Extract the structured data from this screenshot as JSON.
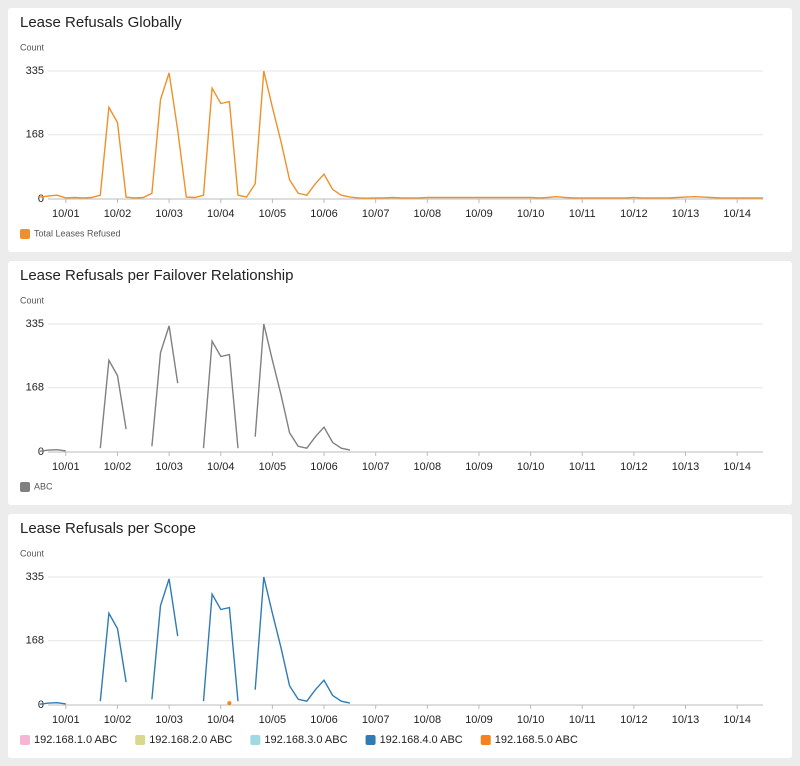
{
  "chart_data": [
    {
      "type": "line",
      "title": "Lease Refusals Globally",
      "y_label": "Count",
      "legend": "bottom-left",
      "grid": true,
      "ylim": [
        0,
        335
      ],
      "yticks": [
        0,
        168,
        335
      ],
      "categories": [
        null,
        null,
        null,
        "10/01",
        null,
        null,
        null,
        null,
        null,
        "10/02",
        null,
        null,
        null,
        null,
        null,
        "10/03",
        null,
        null,
        null,
        null,
        null,
        "10/04",
        null,
        null,
        null,
        null,
        null,
        "10/05",
        null,
        null,
        null,
        null,
        null,
        "10/06",
        null,
        null,
        null,
        null,
        null,
        "10/07",
        null,
        null,
        null,
        null,
        null,
        "10/08",
        null,
        null,
        null,
        null,
        null,
        "10/09",
        null,
        null,
        null,
        null,
        null,
        "10/10",
        null,
        null,
        null,
        null,
        null,
        "10/11",
        null,
        null,
        null,
        null,
        null,
        "10/12",
        null,
        null,
        null,
        null,
        null,
        "10/13",
        null,
        null,
        null,
        null,
        null,
        "10/14",
        null,
        null,
        null
      ],
      "series": [
        {
          "name": "Total Leases Refused",
          "color": "#f0902a",
          "values": [
            5,
            8,
            10,
            3,
            4,
            3,
            4,
            10,
            240,
            200,
            5,
            3,
            4,
            15,
            260,
            330,
            180,
            5,
            4,
            10,
            290,
            250,
            255,
            10,
            5,
            40,
            335,
            240,
            150,
            50,
            15,
            10,
            40,
            65,
            25,
            10,
            5,
            3,
            2,
            3,
            3,
            4,
            3,
            3,
            3,
            4,
            4,
            4,
            4,
            4,
            4,
            4,
            4,
            4,
            4,
            4,
            4,
            4,
            3,
            4,
            6,
            4,
            3,
            3,
            3,
            3,
            3,
            3,
            3,
            4,
            3,
            3,
            3,
            3,
            4,
            5,
            6,
            5,
            4,
            3,
            3,
            3,
            3,
            3,
            3
          ]
        }
      ]
    },
    {
      "type": "line",
      "title": "Lease Refusals per Failover Relationship",
      "y_label": "Count",
      "legend": "bottom-left",
      "grid": true,
      "ylim": [
        0,
        335
      ],
      "yticks": [
        0,
        168,
        335
      ],
      "categories": [
        null,
        null,
        null,
        "10/01",
        null,
        null,
        null,
        null,
        null,
        "10/02",
        null,
        null,
        null,
        null,
        null,
        "10/03",
        null,
        null,
        null,
        null,
        null,
        "10/04",
        null,
        null,
        null,
        null,
        null,
        "10/05",
        null,
        null,
        null,
        null,
        null,
        "10/06",
        null,
        null,
        null,
        null,
        null,
        "10/07",
        null,
        null,
        null,
        null,
        null,
        "10/08",
        null,
        null,
        null,
        null,
        null,
        "10/09",
        null,
        null,
        null,
        null,
        null,
        "10/10",
        null,
        null,
        null,
        null,
        null,
        "10/11",
        null,
        null,
        null,
        null,
        null,
        "10/12",
        null,
        null,
        null,
        null,
        null,
        "10/13",
        null,
        null,
        null,
        null,
        null,
        "10/14",
        null,
        null,
        null
      ],
      "series": [
        {
          "name": "ABC",
          "color": "#808080",
          "values": [
            2,
            5,
            6,
            3,
            null,
            null,
            null,
            10,
            240,
            200,
            60,
            null,
            null,
            15,
            260,
            330,
            180,
            null,
            null,
            10,
            290,
            250,
            255,
            10,
            null,
            40,
            335,
            240,
            150,
            50,
            15,
            10,
            40,
            65,
            25,
            10,
            5,
            null,
            null,
            null,
            null,
            null,
            null,
            null,
            null,
            null,
            null,
            null,
            null,
            null,
            null,
            null,
            null,
            null,
            null,
            null,
            null,
            null,
            null,
            null,
            null,
            null,
            null,
            null,
            null,
            null,
            null,
            null,
            null,
            null,
            null,
            null,
            null,
            null,
            null,
            null,
            null,
            null,
            null,
            null,
            null,
            null,
            null,
            null,
            null
          ]
        }
      ]
    },
    {
      "type": "line",
      "title": "Lease Refusals per Scope",
      "y_label": "Count",
      "legend": "bottom-left",
      "grid": true,
      "ylim": [
        0,
        335
      ],
      "yticks": [
        0,
        168,
        335
      ],
      "categories": [
        null,
        null,
        null,
        "10/01",
        null,
        null,
        null,
        null,
        null,
        "10/02",
        null,
        null,
        null,
        null,
        null,
        "10/03",
        null,
        null,
        null,
        null,
        null,
        "10/04",
        null,
        null,
        null,
        null,
        null,
        "10/05",
        null,
        null,
        null,
        null,
        null,
        "10/06",
        null,
        null,
        null,
        null,
        null,
        "10/07",
        null,
        null,
        null,
        null,
        null,
        "10/08",
        null,
        null,
        null,
        null,
        null,
        "10/09",
        null,
        null,
        null,
        null,
        null,
        "10/10",
        null,
        null,
        null,
        null,
        null,
        "10/11",
        null,
        null,
        null,
        null,
        null,
        "10/12",
        null,
        null,
        null,
        null,
        null,
        "10/13",
        null,
        null,
        null,
        null,
        null,
        "10/14",
        null,
        null,
        null
      ],
      "series": [
        {
          "name": "192.168.1.0 ABC",
          "color": "#f4b6d2",
          "values": [
            null,
            null,
            null,
            null,
            null,
            null,
            null,
            null,
            null,
            null,
            null,
            null,
            null,
            null,
            null,
            null,
            null,
            null,
            null,
            null,
            null,
            null,
            null,
            null,
            null,
            null,
            null,
            null,
            null,
            null,
            null,
            null,
            null,
            null,
            null,
            null,
            null,
            null,
            null,
            null,
            null,
            null,
            null,
            null,
            null,
            null,
            null,
            null,
            null,
            null,
            null,
            null,
            null,
            null,
            null,
            null,
            null,
            null,
            null,
            null,
            null,
            null,
            null,
            null,
            null,
            null,
            null,
            null,
            null,
            null,
            null,
            null,
            null,
            null,
            null,
            null,
            null,
            null,
            null,
            null,
            null,
            null,
            null,
            null,
            null
          ]
        },
        {
          "name": "192.168.2.0 ABC",
          "color": "#d8d88e",
          "values": [
            null,
            null,
            null,
            null,
            null,
            null,
            null,
            null,
            null,
            null,
            null,
            null,
            null,
            null,
            null,
            null,
            null,
            null,
            null,
            null,
            null,
            null,
            null,
            null,
            null,
            null,
            null,
            null,
            null,
            null,
            null,
            null,
            null,
            null,
            null,
            null,
            null,
            null,
            null,
            null,
            null,
            null,
            null,
            null,
            null,
            null,
            null,
            null,
            null,
            null,
            null,
            null,
            null,
            null,
            null,
            null,
            null,
            null,
            null,
            null,
            null,
            null,
            null,
            null,
            null,
            null,
            null,
            null,
            null,
            null,
            null,
            null,
            null,
            null,
            null,
            null,
            null,
            null,
            null,
            null,
            null,
            null,
            null,
            null,
            null
          ]
        },
        {
          "name": "192.168.3.0 ABC",
          "color": "#9fd9e1",
          "values": [
            null,
            null,
            null,
            null,
            null,
            null,
            null,
            null,
            null,
            null,
            null,
            null,
            null,
            null,
            null,
            null,
            null,
            null,
            null,
            null,
            null,
            null,
            null,
            null,
            null,
            null,
            null,
            null,
            null,
            null,
            null,
            null,
            null,
            null,
            null,
            null,
            null,
            null,
            null,
            null,
            null,
            null,
            null,
            null,
            null,
            null,
            null,
            null,
            null,
            null,
            null,
            null,
            null,
            null,
            null,
            null,
            null,
            null,
            null,
            null,
            null,
            null,
            null,
            null,
            null,
            null,
            null,
            null,
            null,
            null,
            null,
            null,
            null,
            null,
            null,
            null,
            null,
            null,
            null,
            null,
            null,
            null,
            null,
            null,
            null
          ]
        },
        {
          "name": "192.168.4.0 ABC",
          "color": "#2f7bb5",
          "values": [
            2,
            5,
            6,
            3,
            null,
            null,
            null,
            10,
            240,
            200,
            60,
            null,
            null,
            15,
            260,
            330,
            180,
            null,
            null,
            10,
            290,
            250,
            255,
            10,
            null,
            40,
            335,
            240,
            150,
            50,
            15,
            10,
            40,
            65,
            25,
            10,
            5,
            null,
            null,
            null,
            null,
            null,
            null,
            null,
            null,
            null,
            null,
            null,
            null,
            null,
            null,
            null,
            null,
            null,
            null,
            null,
            null,
            null,
            null,
            null,
            null,
            null,
            null,
            null,
            null,
            null,
            null,
            null,
            null,
            null,
            null,
            null,
            null,
            null,
            null,
            null,
            null,
            null,
            null,
            null,
            null,
            null,
            null,
            null,
            null
          ]
        },
        {
          "name": "192.168.5.0 ABC",
          "color": "#f5821f",
          "values": [
            null,
            null,
            null,
            null,
            null,
            null,
            null,
            null,
            null,
            null,
            null,
            null,
            null,
            null,
            null,
            null,
            null,
            null,
            null,
            null,
            null,
            null,
            5,
            null,
            null,
            null,
            null,
            null,
            null,
            null,
            null,
            null,
            null,
            null,
            null,
            null,
            null,
            null,
            null,
            null,
            null,
            null,
            null,
            null,
            null,
            null,
            null,
            null,
            null,
            null,
            null,
            null,
            null,
            null,
            null,
            null,
            null,
            null,
            null,
            null,
            null,
            null,
            null,
            null,
            null,
            null,
            null,
            null,
            null,
            null,
            null,
            null,
            null,
            null,
            null,
            null,
            null,
            null,
            null,
            null,
            null,
            null,
            null,
            null,
            null
          ]
        }
      ]
    }
  ]
}
